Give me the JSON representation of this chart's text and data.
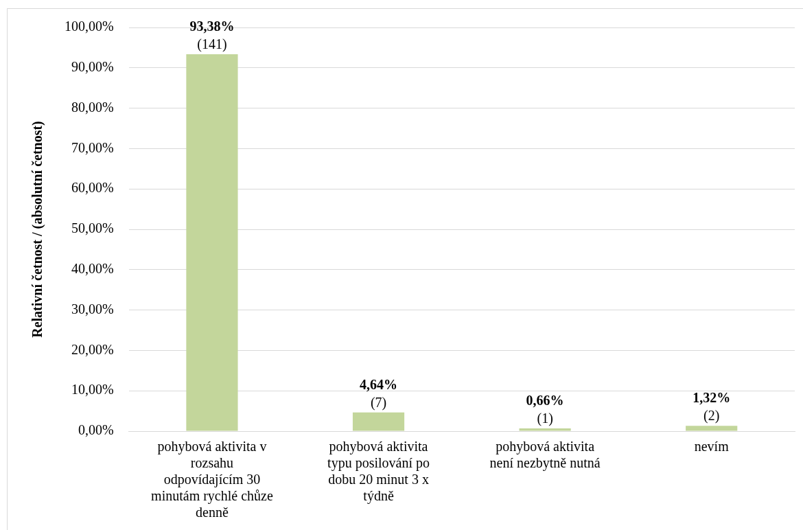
{
  "chart_data": {
    "type": "bar",
    "ylabel": "Relativní četnost / (absolutní četnost)",
    "categories": [
      "pohybová aktivita v rozsahu odpovídajícím 30 minutám rychlé chůze denně",
      "pohybová aktivita typu posilování po dobu 20 minut 3 x týdně",
      "pohybová aktivita není nezbytně nutná",
      "nevím"
    ],
    "values": [
      93.38,
      4.64,
      0.66,
      1.32
    ],
    "value_labels": [
      "93,38% (141)",
      "4,64% (7)",
      "0,66% (1)",
      "1,32% (2)"
    ],
    "color": "#c3d69b",
    "ylim": [
      0,
      100
    ],
    "yticks": [
      {
        "value": 0,
        "label": "0,00%"
      },
      {
        "value": 10,
        "label": "10,00%"
      },
      {
        "value": 20,
        "label": "20,00%"
      },
      {
        "value": 30,
        "label": "30,00%"
      },
      {
        "value": 40,
        "label": "40,00%"
      },
      {
        "value": 50,
        "label": "50,00%"
      },
      {
        "value": 60,
        "label": "60,00%"
      },
      {
        "value": 70,
        "label": "70,00%"
      },
      {
        "value": 80,
        "label": "80,00%"
      },
      {
        "value": 90,
        "label": "90,00%"
      },
      {
        "value": 100,
        "label": "100,00%"
      }
    ],
    "grid": "y",
    "legend": false
  }
}
